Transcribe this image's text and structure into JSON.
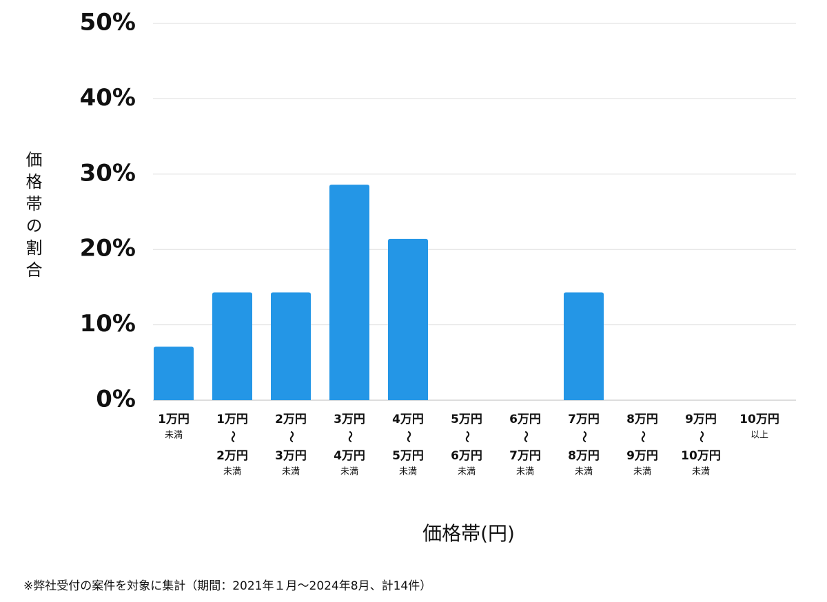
{
  "chart_data": {
    "type": "bar",
    "y_label": "価格帯の割合",
    "x_label": "価格帯(円)",
    "note": "※弊社受付の案件を対象に集計（期間：2021年１月〜2024年8月、計14件）",
    "categories": [
      [
        "1万円",
        "未満"
      ],
      [
        "1万円",
        "〜",
        "2万円",
        "未満"
      ],
      [
        "2万円",
        "〜",
        "3万円",
        "未満"
      ],
      [
        "3万円",
        "〜",
        "4万円",
        "未満"
      ],
      [
        "4万円",
        "〜",
        "5万円",
        "未満"
      ],
      [
        "5万円",
        "〜",
        "6万円",
        "未満"
      ],
      [
        "6万円",
        "〜",
        "7万円",
        "未満"
      ],
      [
        "7万円",
        "〜",
        "8万円",
        "未満"
      ],
      [
        "8万円",
        "〜",
        "9万円",
        "未満"
      ],
      [
        "9万円",
        "〜",
        "10万円",
        "未満"
      ],
      [
        "10万円",
        "以上"
      ]
    ],
    "values": [
      7.1,
      14.3,
      14.3,
      28.6,
      21.4,
      0,
      0,
      14.3,
      0,
      0,
      0
    ],
    "color": "#2496e6",
    "ylim": [
      0,
      50
    ],
    "yticks": [
      {
        "value": 0,
        "label": "0%"
      },
      {
        "value": 10,
        "label": "10%"
      },
      {
        "value": 20,
        "label": "20%"
      },
      {
        "value": 30,
        "label": "30%"
      },
      {
        "value": 40,
        "label": "40%"
      },
      {
        "value": 50,
        "label": "50%"
      }
    ],
    "grid": true
  }
}
